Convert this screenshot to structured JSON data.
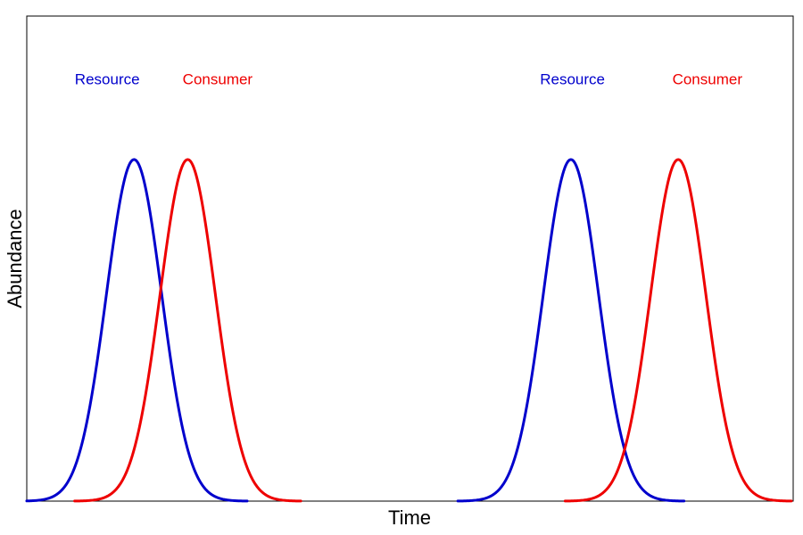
{
  "chart_data": {
    "type": "line",
    "title": "",
    "xlabel": "Time",
    "ylabel": "Abundance",
    "xlim": [
      0,
      100
    ],
    "ylim": [
      0,
      1.42
    ],
    "grid": false,
    "x_ticks_shown": false,
    "y_ticks_shown": false,
    "series": [
      {
        "name": "Resource",
        "color": "#0000CC",
        "peaks": [
          {
            "center": 14,
            "height": 1.0,
            "sd": 3.6
          },
          {
            "center": 71,
            "height": 1.0,
            "sd": 3.6
          }
        ]
      },
      {
        "name": "Consumer",
        "color": "#EE0000",
        "peaks": [
          {
            "center": 21,
            "height": 1.0,
            "sd": 3.6
          },
          {
            "center": 85,
            "height": 1.0,
            "sd": 3.6
          }
        ]
      }
    ],
    "annotations": [
      {
        "text": "Resource",
        "series": "Resource",
        "x": 10.5,
        "y": 1.22
      },
      {
        "text": "Consumer",
        "series": "Consumer",
        "x": 24.9,
        "y": 1.22
      },
      {
        "text": "Resource",
        "series": "Resource",
        "x": 71.2,
        "y": 1.22
      },
      {
        "text": "Consumer",
        "series": "Consumer",
        "x": 88.8,
        "y": 1.22
      }
    ]
  }
}
